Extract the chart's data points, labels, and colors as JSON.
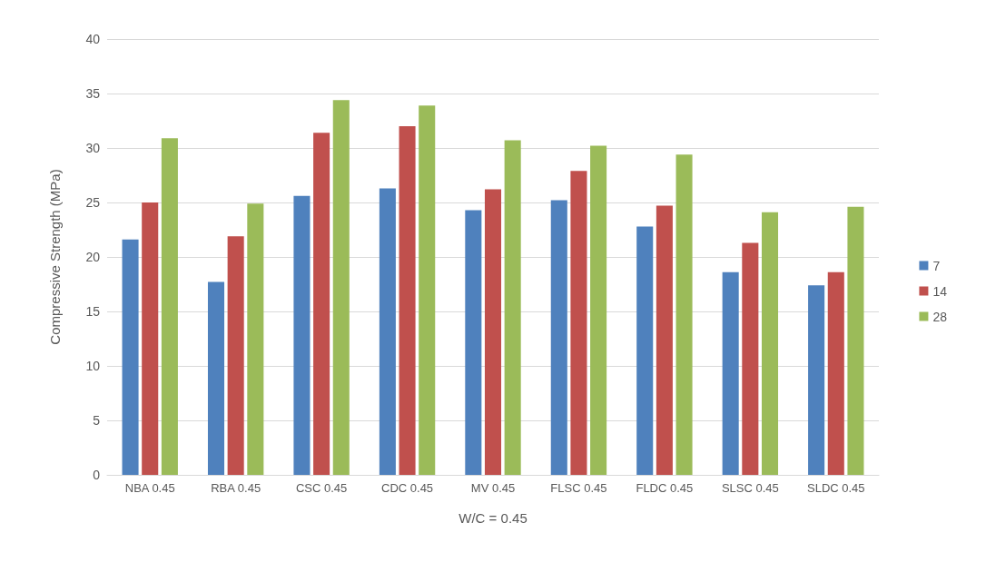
{
  "chart_data": {
    "type": "bar",
    "xlabel": "W/C = 0.45",
    "ylabel": "Compressive Strength (MPa)",
    "categories": [
      "NBA 0.45",
      "RBA 0.45",
      "CSC 0.45",
      "CDC 0.45",
      "MV 0.45",
      "FLSC 0.45",
      "FLDC 0.45",
      "SLSC 0.45",
      "SLDC 0.45"
    ],
    "series": [
      {
        "name": "7",
        "color": "#4f81bd",
        "values": [
          21.6,
          17.7,
          25.6,
          26.3,
          24.3,
          25.2,
          22.8,
          18.6,
          17.4
        ]
      },
      {
        "name": "14",
        "color": "#c0504d",
        "values": [
          25.0,
          21.9,
          31.4,
          32.0,
          26.2,
          27.9,
          24.7,
          21.3,
          18.6
        ]
      },
      {
        "name": "28",
        "color": "#9bbb59",
        "values": [
          30.9,
          24.9,
          34.4,
          33.9,
          30.7,
          30.2,
          29.4,
          24.1,
          24.6
        ]
      }
    ],
    "ylim": [
      0,
      40
    ],
    "yticks": [
      0,
      5,
      10,
      15,
      20,
      25,
      30,
      35,
      40
    ],
    "grid": "y",
    "legend": "right"
  }
}
